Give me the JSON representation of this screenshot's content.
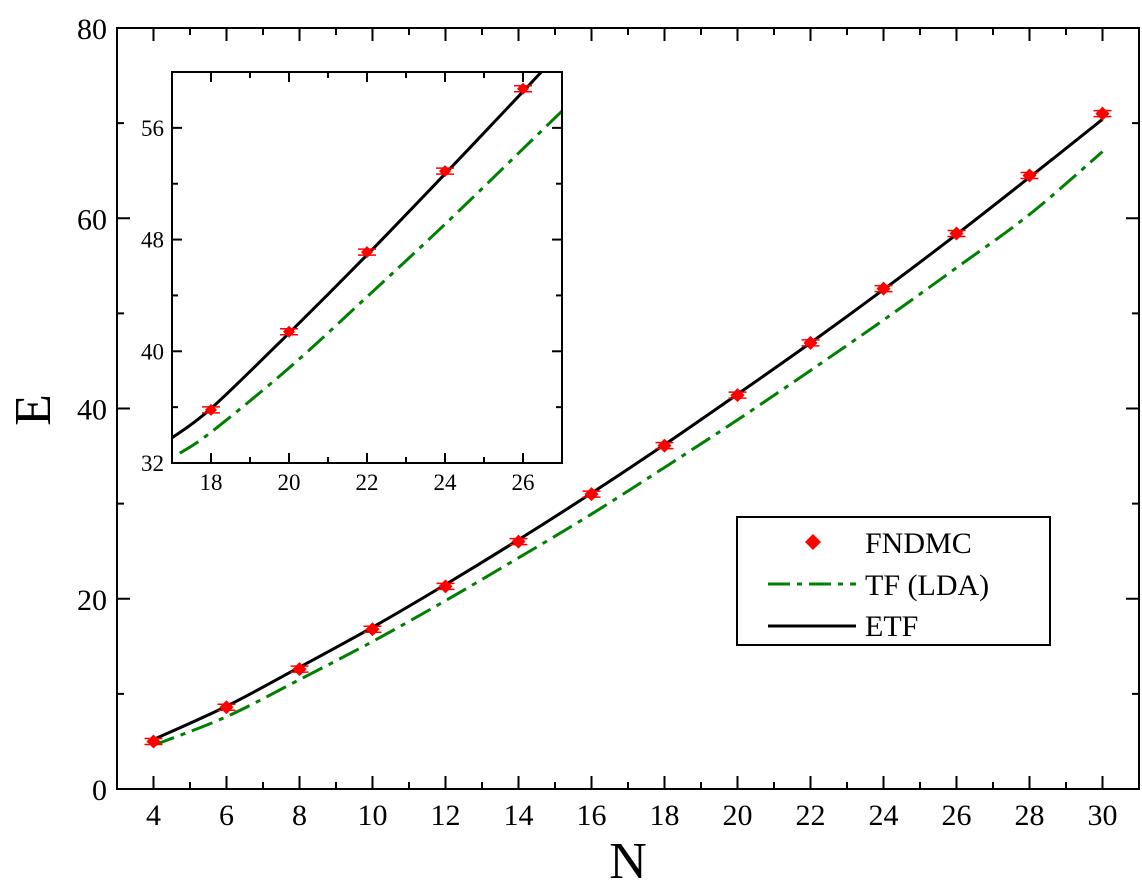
{
  "chart_data": [
    {
      "type": "line",
      "role": "main",
      "xlabel": "N",
      "ylabel": "E",
      "xlim": [
        3,
        31
      ],
      "ylim": [
        0,
        80
      ],
      "xticks": [
        4,
        6,
        8,
        10,
        12,
        14,
        16,
        18,
        20,
        22,
        24,
        26,
        28,
        30
      ],
      "yticks": [
        0,
        20,
        40,
        60,
        80
      ],
      "grid": false,
      "legend_position": "bottom-right",
      "series": [
        {
          "name": "FNDMC",
          "kind": "scatter-errorbar",
          "marker": "diamond",
          "color": "#ff0000",
          "x": [
            4,
            6,
            8,
            10,
            12,
            14,
            16,
            18,
            20,
            22,
            24,
            26,
            28,
            30
          ],
          "y": [
            5.0,
            8.6,
            12.6,
            16.8,
            21.3,
            26.0,
            31.0,
            36.1,
            41.4,
            46.9,
            52.6,
            58.4,
            64.5,
            71.0
          ]
        },
        {
          "name": "TF (LDA)",
          "kind": "line",
          "style": "dash-dot",
          "color": "#008000",
          "x": [
            4,
            6,
            8,
            10,
            12,
            14,
            16,
            18,
            20,
            22,
            24,
            26,
            28,
            30
          ],
          "y": [
            4.6,
            7.6,
            11.5,
            15.5,
            19.8,
            24.3,
            28.9,
            33.8,
            38.8,
            44.0,
            49.3,
            54.8,
            60.4,
            67.0
          ]
        },
        {
          "name": "ETF",
          "kind": "line",
          "style": "solid",
          "color": "#000000",
          "x": [
            4,
            6,
            8,
            10,
            12,
            14,
            16,
            18,
            20,
            22,
            24,
            26,
            28,
            30
          ],
          "y": [
            5.2,
            8.7,
            12.8,
            17.0,
            21.5,
            26.2,
            31.1,
            36.2,
            41.5,
            46.9,
            52.5,
            58.3,
            64.3,
            70.4
          ]
        }
      ]
    },
    {
      "type": "line",
      "role": "inset",
      "xlim": [
        17,
        27
      ],
      "ylim": [
        32,
        60
      ],
      "xticks": [
        18,
        20,
        22,
        24,
        26
      ],
      "yticks": [
        32,
        40,
        48,
        56
      ],
      "grid": false,
      "series": [
        {
          "name": "FNDMC",
          "kind": "scatter-errorbar",
          "marker": "diamond",
          "color": "#ff0000",
          "x": [
            18,
            20,
            22,
            24,
            26
          ],
          "y": [
            35.8,
            41.4,
            47.1,
            52.9,
            58.8
          ]
        },
        {
          "name": "TF (LDA)",
          "kind": "line",
          "style": "dash-dot",
          "color": "#008000",
          "x": [
            17.2,
            18,
            20,
            22,
            24,
            26,
            27
          ],
          "y": [
            32.7,
            34.2,
            38.8,
            43.9,
            49.1,
            54.5,
            57.2
          ]
        },
        {
          "name": "ETF",
          "kind": "line",
          "style": "solid",
          "color": "#000000",
          "x": [
            17,
            18,
            20,
            22,
            24,
            26,
            27
          ],
          "y": [
            33.8,
            35.9,
            41.3,
            46.9,
            52.7,
            58.6,
            61.6
          ]
        }
      ]
    }
  ]
}
